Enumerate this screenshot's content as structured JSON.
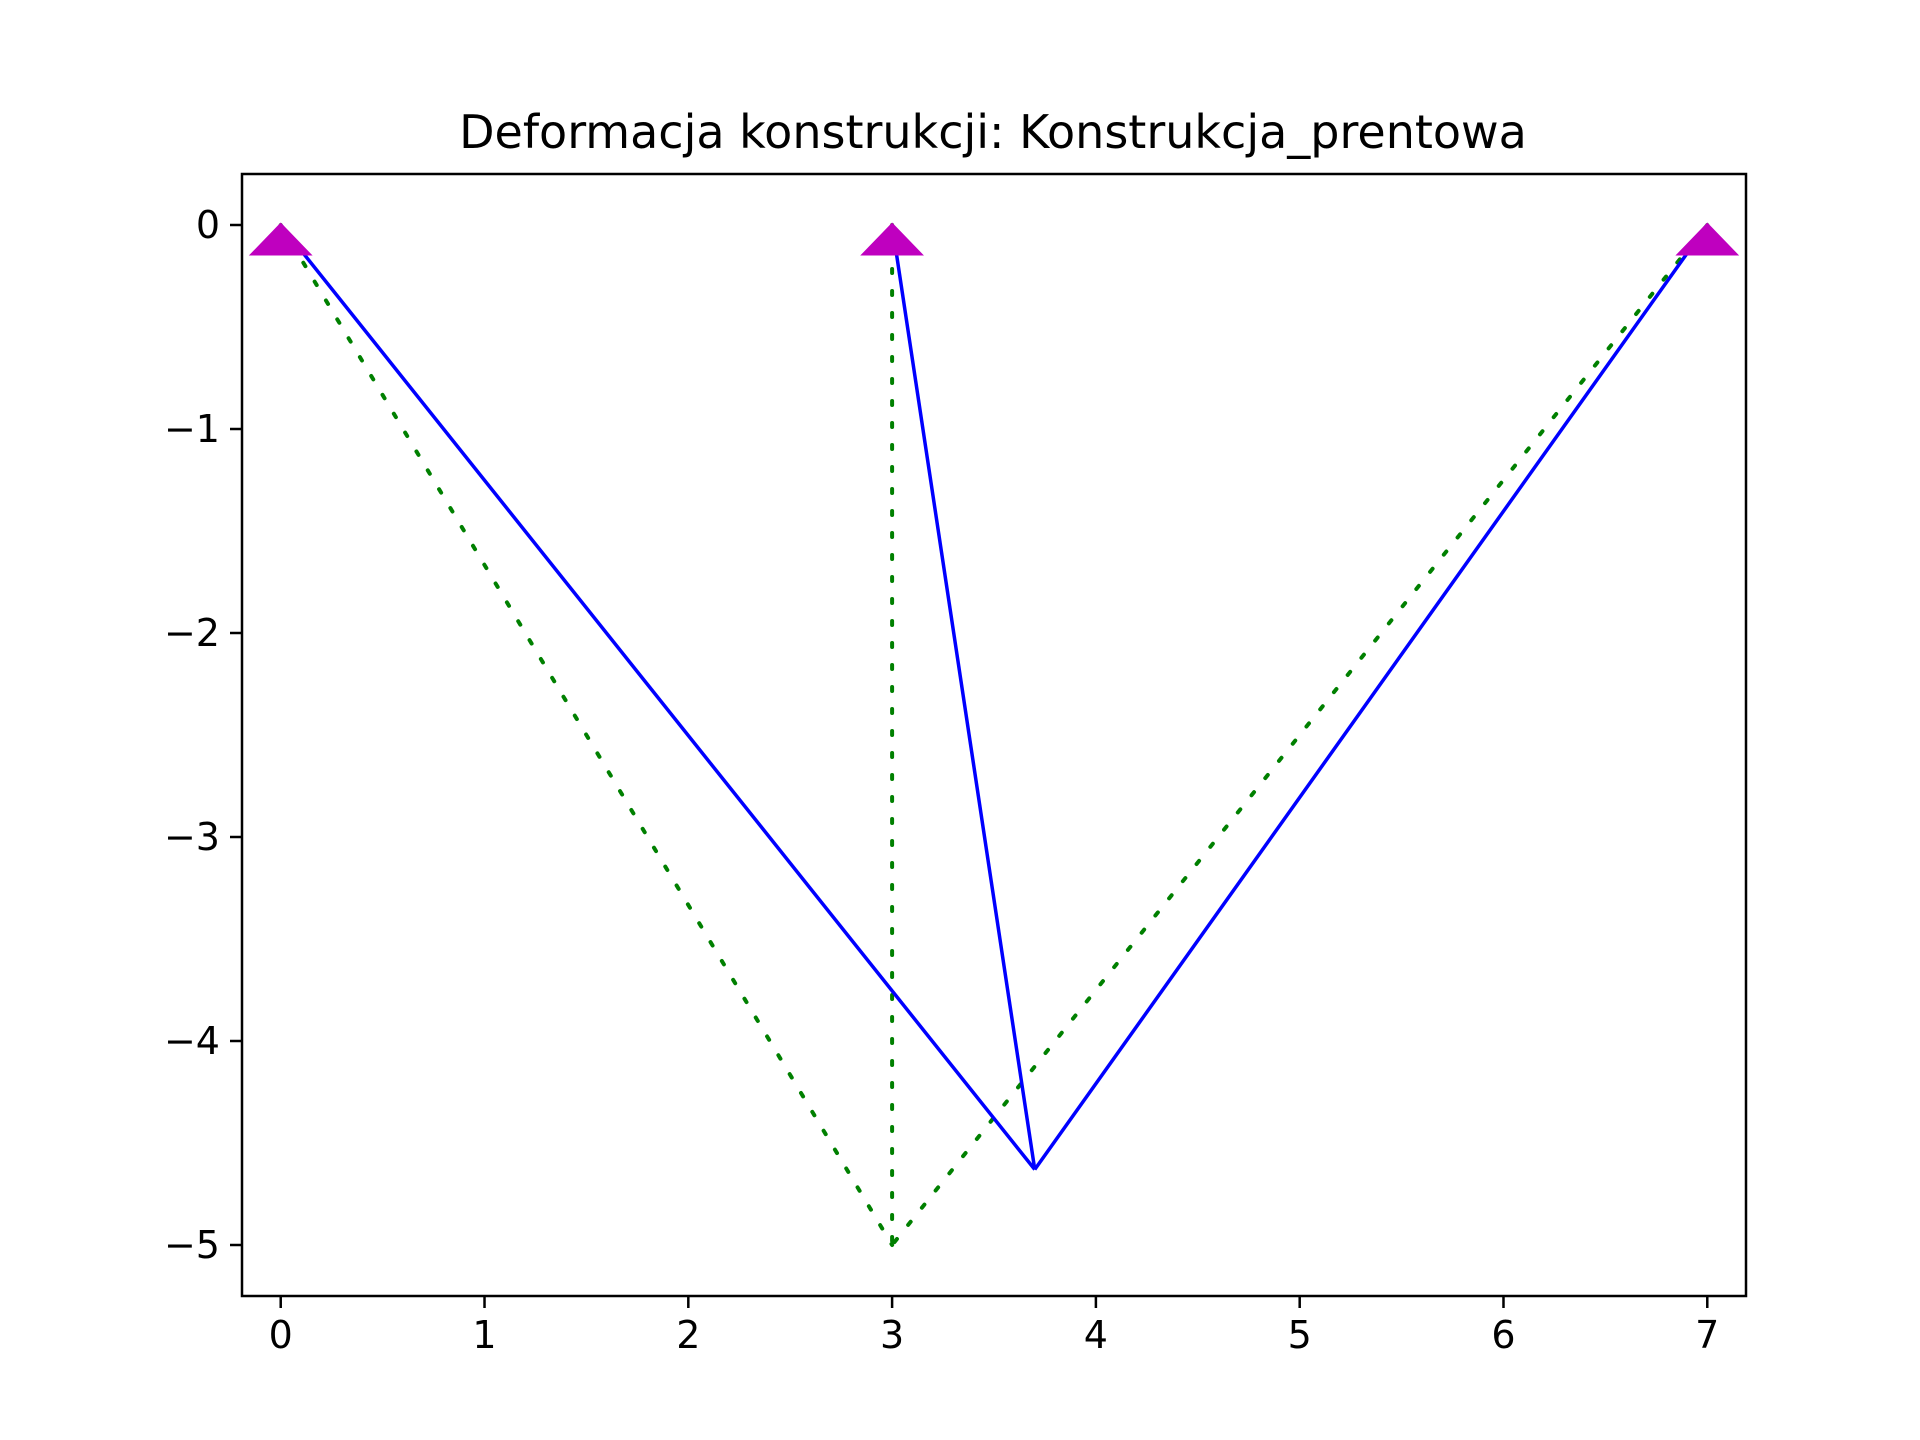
{
  "chart_data": {
    "type": "line",
    "title": "Deformacja konstrukcji: Konstrukcja_prentowa",
    "xlabel": "",
    "ylabel": "",
    "xlim": [
      -0.19,
      7.19
    ],
    "ylim": [
      -5.25,
      0.25
    ],
    "x_ticks": [
      0,
      1,
      2,
      3,
      4,
      5,
      6,
      7
    ],
    "x_tick_labels": [
      "0",
      "1",
      "2",
      "3",
      "4",
      "5",
      "6",
      "7"
    ],
    "y_ticks": [
      0,
      -1,
      -2,
      -3,
      -4,
      -5
    ],
    "y_tick_labels": [
      "0",
      "−1",
      "−2",
      "−3",
      "−4",
      "−5"
    ],
    "grid": false,
    "series": [
      {
        "style": "dotted",
        "color": "#008000",
        "segments": [
          [
            [
              0,
              0
            ],
            [
              3,
              -5
            ]
          ],
          [
            [
              3,
              0
            ],
            [
              3,
              -5
            ]
          ],
          [
            [
              7,
              0
            ],
            [
              3,
              -5
            ]
          ]
        ]
      },
      {
        "style": "solid",
        "color": "#0000ff",
        "segments": [
          [
            [
              0,
              0
            ],
            [
              3.7,
              -4.63
            ]
          ],
          [
            [
              3,
              0
            ],
            [
              3.7,
              -4.63
            ]
          ],
          [
            [
              7,
              0
            ],
            [
              3.7,
              -4.63
            ]
          ]
        ]
      }
    ],
    "supports": {
      "marker": "triangle-up",
      "color": "#bf00bf",
      "points": [
        [
          0,
          0
        ],
        [
          3,
          0
        ],
        [
          7,
          0
        ]
      ]
    }
  }
}
